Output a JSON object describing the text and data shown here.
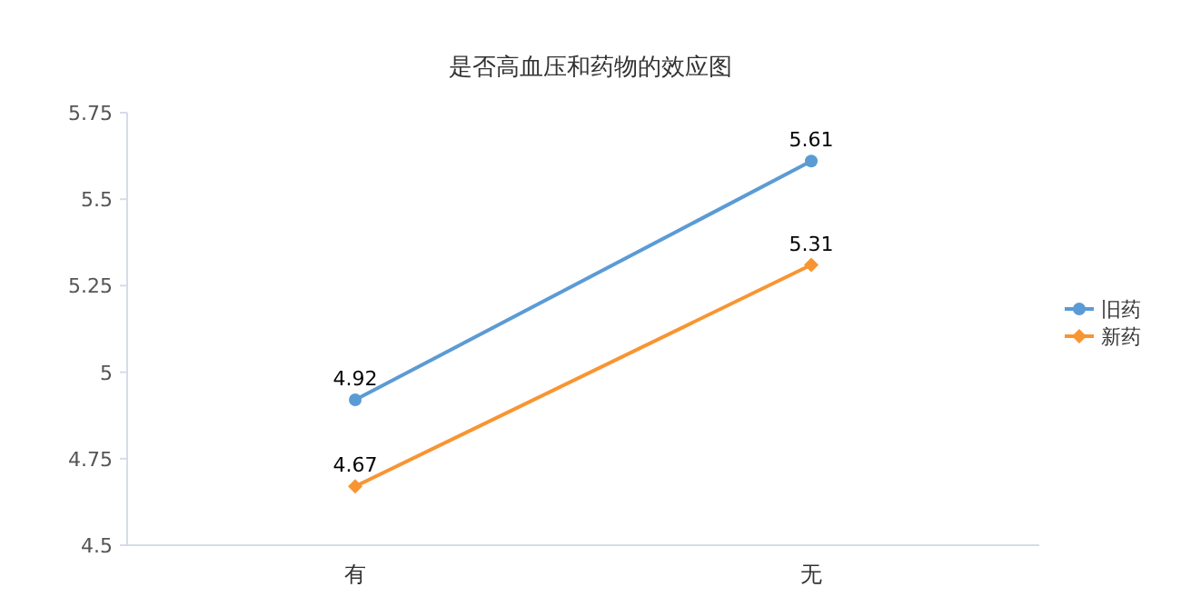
{
  "chart_data": {
    "type": "line",
    "title": "是否高血压和药物的效应图",
    "categories": [
      "有",
      "无"
    ],
    "series": [
      {
        "name": "旧药",
        "color": "#5b9bd5",
        "values": [
          4.92,
          5.61
        ],
        "marker": "circle"
      },
      {
        "name": "新药",
        "color": "#f89532",
        "values": [
          4.67,
          5.31
        ],
        "marker": "diamond"
      }
    ],
    "ylim": [
      4.5,
      5.75
    ],
    "yticks": [
      4.5,
      4.75,
      5,
      5.25,
      5.5,
      5.75
    ],
    "data_labels": true,
    "legend": "right",
    "grid": false
  }
}
